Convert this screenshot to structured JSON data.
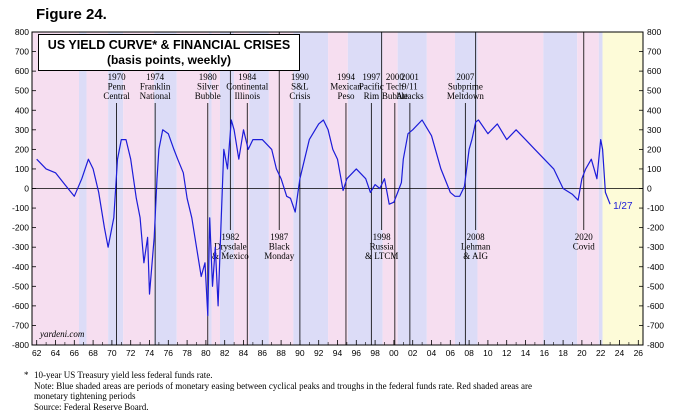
{
  "figure_label": "Figure 24.",
  "colors": {
    "easing": "#dcdcf7",
    "tightening": "#f6def0",
    "forecast": "#fdfbd8",
    "line": "#1c1cd9",
    "events": "#000000",
    "zero": "#000000"
  },
  "watermark": "yardeni.com",
  "last_value_label": "1/27",
  "footnotes": {
    "marker": "*",
    "lines": [
      "10-year US Treasury yield less federal funds rate.",
      "Note: Blue shaded areas are periods of monetary easing between cyclical peaks and troughs in the federal funds rate. Red shaded areas are",
      "monetary tightening periods",
      "Source: Federal Reserve Board."
    ]
  },
  "chart_data": {
    "type": "line",
    "title": "US YIELD CURVE* & FINANCIAL CRISES",
    "subtitle": "(basis points, weekly)",
    "xlabel": "",
    "ylabel": "",
    "xlim": [
      1961.5,
      2026.5
    ],
    "ylim": [
      -800,
      800
    ],
    "x_ticks": [
      "62",
      "64",
      "66",
      "68",
      "70",
      "72",
      "74",
      "76",
      "78",
      "80",
      "82",
      "84",
      "86",
      "88",
      "90",
      "92",
      "94",
      "96",
      "98",
      "00",
      "02",
      "04",
      "06",
      "08",
      "10",
      "12",
      "14",
      "16",
      "18",
      "20",
      "22",
      "24",
      "26"
    ],
    "y_ticks": [
      -800,
      -700,
      -600,
      -500,
      -400,
      -300,
      -200,
      -100,
      0,
      100,
      200,
      300,
      400,
      500,
      600,
      700,
      800
    ],
    "grid": false,
    "series": [
      {
        "x": [
          1962,
          1963,
          1964,
          1965,
          1966,
          1966.8,
          1967.5,
          1968,
          1968.6,
          1969.2,
          1969.6,
          1970.2,
          1970.6,
          1971,
          1971.5,
          1972,
          1972.6,
          1973,
          1973.4,
          1973.8,
          1974,
          1974.5,
          1974.8,
          1975,
          1975.4,
          1976,
          1976.6,
          1977,
          1977.6,
          1978,
          1978.5,
          1979,
          1979.5,
          1979.9,
          1980.2,
          1980.4,
          1980.7,
          1981,
          1981.3,
          1981.6,
          1981.9,
          1982.3,
          1982.7,
          1983,
          1983.5,
          1984,
          1984.5,
          1985,
          1986,
          1987,
          1987.5,
          1988,
          1988.6,
          1989,
          1989.5,
          1990,
          1991,
          1992,
          1992.5,
          1993,
          1993.5,
          1994,
          1994.6,
          1995,
          1996,
          1997,
          1997.5,
          1998,
          1998.5,
          1999,
          1999.5,
          2000,
          2000.4,
          2000.8,
          2001,
          2001.5,
          2002,
          2003,
          2004,
          2005,
          2006,
          2006.5,
          2007,
          2007.5,
          2008,
          2008.3,
          2008.7,
          2009,
          2010,
          2011,
          2012,
          2013,
          2014,
          2015,
          2016,
          2017,
          2018,
          2019,
          2019.6,
          2020,
          2020.4,
          2021,
          2021.6,
          2022,
          2022.2,
          2022.5,
          2023
        ],
        "values": [
          150,
          100,
          80,
          20,
          -40,
          50,
          150,
          100,
          -20,
          -200,
          -300,
          -150,
          150,
          250,
          250,
          150,
          -50,
          -150,
          -380,
          -250,
          -540,
          -250,
          50,
          200,
          300,
          280,
          200,
          150,
          80,
          -50,
          -150,
          -300,
          -450,
          -380,
          -650,
          -150,
          -500,
          -300,
          -600,
          -200,
          200,
          100,
          350,
          300,
          150,
          300,
          200,
          250,
          250,
          200,
          100,
          50,
          -40,
          -50,
          -120,
          50,
          250,
          330,
          350,
          300,
          200,
          150,
          -10,
          50,
          100,
          50,
          -20,
          20,
          0,
          50,
          -80,
          -70,
          -20,
          30,
          150,
          280,
          300,
          350,
          270,
          100,
          -20,
          -40,
          -40,
          10,
          200,
          250,
          340,
          350,
          280,
          330,
          250,
          300,
          250,
          200,
          150,
          100,
          0,
          -30,
          -60,
          50,
          100,
          150,
          50,
          250,
          200,
          -20,
          -80
        ]
      }
    ],
    "events": [
      {
        "label": [
          "1970",
          "Penn",
          "Central"
        ],
        "x": 1970.5,
        "where": "above"
      },
      {
        "label": [
          "1974",
          "Franklin",
          "National"
        ],
        "x": 1974.6,
        "where": "above"
      },
      {
        "label": [
          "1980",
          "Silver",
          "Bubble"
        ],
        "x": 1980.2,
        "where": "above"
      },
      {
        "label": [
          "1984",
          "Continental",
          "Illinois"
        ],
        "x": 1984.4,
        "where": "above"
      },
      {
        "label": [
          "1990",
          "S&L",
          "Crisis"
        ],
        "x": 1990.0,
        "where": "above"
      },
      {
        "label": [
          "1994",
          "Mexican",
          "Peso"
        ],
        "x": 1994.9,
        "where": "above"
      },
      {
        "label": [
          "1997",
          "Pacific",
          "Rim"
        ],
        "x": 1997.6,
        "where": "above"
      },
      {
        "label": [
          "2000",
          "Tech",
          "Bubble"
        ],
        "x": 2000.1,
        "where": "above"
      },
      {
        "label": [
          "2001",
          "9/11",
          "Attacks"
        ],
        "x": 2001.7,
        "where": "above"
      },
      {
        "label": [
          "2007",
          "Subprime",
          "Meltdown"
        ],
        "x": 2007.6,
        "where": "above"
      },
      {
        "label": [
          "1982",
          "Drysdale",
          "& Mexico"
        ],
        "x": 1982.6,
        "where": "below"
      },
      {
        "label": [
          "1987",
          "Black",
          "Monday"
        ],
        "x": 1987.8,
        "where": "below"
      },
      {
        "label": [
          "1998",
          "Russia",
          "& LTCM"
        ],
        "x": 1998.7,
        "where": "below"
      },
      {
        "label": [
          "2008",
          "Lehman",
          "& AIG"
        ],
        "x": 2008.7,
        "where": "below"
      },
      {
        "label": [
          "2020",
          "Covid"
        ],
        "x": 2020.2,
        "where": "below"
      }
    ],
    "shaded_periods": [
      {
        "start": 1961.5,
        "end": 1966.5,
        "kind": "tightening"
      },
      {
        "start": 1966.5,
        "end": 1967.3,
        "kind": "easing"
      },
      {
        "start": 1967.3,
        "end": 1969.6,
        "kind": "tightening"
      },
      {
        "start": 1969.6,
        "end": 1971.2,
        "kind": "easing"
      },
      {
        "start": 1971.2,
        "end": 1974.5,
        "kind": "tightening"
      },
      {
        "start": 1974.5,
        "end": 1976.9,
        "kind": "easing"
      },
      {
        "start": 1976.9,
        "end": 1980.3,
        "kind": "tightening"
      },
      {
        "start": 1980.3,
        "end": 1980.6,
        "kind": "easing"
      },
      {
        "start": 1980.6,
        "end": 1981.5,
        "kind": "tightening"
      },
      {
        "start": 1981.5,
        "end": 1983.0,
        "kind": "easing"
      },
      {
        "start": 1983.0,
        "end": 1984.6,
        "kind": "tightening"
      },
      {
        "start": 1984.6,
        "end": 1986.7,
        "kind": "easing"
      },
      {
        "start": 1986.7,
        "end": 1989.3,
        "kind": "tightening"
      },
      {
        "start": 1989.3,
        "end": 1993.0,
        "kind": "easing"
      },
      {
        "start": 1993.0,
        "end": 1995.1,
        "kind": "tightening"
      },
      {
        "start": 1995.1,
        "end": 1998.8,
        "kind": "easing"
      },
      {
        "start": 1998.8,
        "end": 2000.4,
        "kind": "tightening"
      },
      {
        "start": 2000.4,
        "end": 2003.5,
        "kind": "easing"
      },
      {
        "start": 2003.5,
        "end": 2006.5,
        "kind": "tightening"
      },
      {
        "start": 2006.5,
        "end": 2008.9,
        "kind": "easing"
      },
      {
        "start": 2008.9,
        "end": 2015.9,
        "kind": "tightening"
      },
      {
        "start": 2015.9,
        "end": 2019.5,
        "kind": "easing"
      },
      {
        "start": 2019.5,
        "end": 2021.8,
        "kind": "tightening"
      },
      {
        "start": 2021.8,
        "end": 2022.2,
        "kind": "easing"
      },
      {
        "start": 2022.2,
        "end": 2026.5,
        "kind": "forecast"
      }
    ],
    "last_value": -85
  }
}
